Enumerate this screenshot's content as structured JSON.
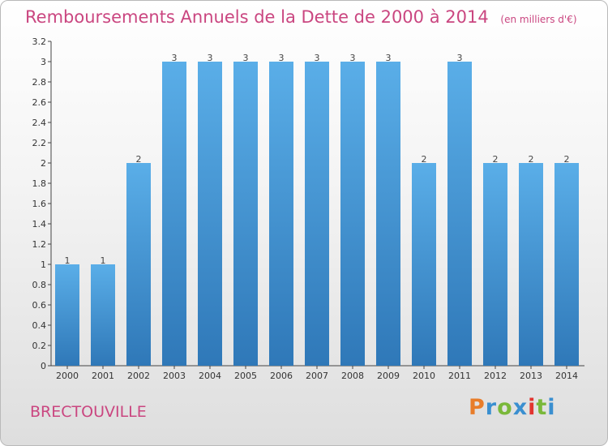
{
  "title": "Remboursements Annuels de la Dette de 2000 à 2014",
  "subtitle": "(en milliers d'€)",
  "commune": "BRECTOUVILLE",
  "logo": {
    "text": "Proxiti",
    "colors": [
      "#e87d2a",
      "#3a8fd0",
      "#7ab83a",
      "#3a8fd0",
      "#e2342f",
      "#7ab83a",
      "#3a8fd0"
    ]
  },
  "colors": {
    "title": "#ca4680",
    "bar_light": "#5aaee8",
    "bar_dark": "#2f78b8"
  },
  "chart_data": {
    "type": "bar",
    "categories": [
      "2000",
      "2001",
      "2002",
      "2003",
      "2004",
      "2005",
      "2006",
      "2007",
      "2008",
      "2009",
      "2010",
      "2011",
      "2012",
      "2013",
      "2014"
    ],
    "values": [
      1,
      1,
      2,
      3,
      3,
      3,
      3,
      3,
      3,
      3,
      2,
      3,
      2,
      2,
      2
    ],
    "data_labels": [
      "1",
      "1",
      "2",
      "3",
      "3",
      "3",
      "3",
      "3",
      "3",
      "3",
      "2",
      "3",
      "2",
      "2",
      "2"
    ],
    "yticks": [
      0,
      0.2,
      0.4,
      0.6,
      0.8,
      1,
      1.2,
      1.4,
      1.6,
      1.8,
      2,
      2.2,
      2.4,
      2.6,
      2.8,
      3,
      3.2
    ],
    "ytick_labels": [
      "0",
      "0.2",
      "0.4",
      "0.6",
      "0.8",
      "1",
      "1.2",
      "1.4",
      "1.6",
      "1.8",
      "2",
      "2.2",
      "2.4",
      "2.6",
      "2.8",
      "3",
      "3.2"
    ],
    "ylim": [
      0,
      3.2
    ],
    "grid": false,
    "legend": "none"
  }
}
